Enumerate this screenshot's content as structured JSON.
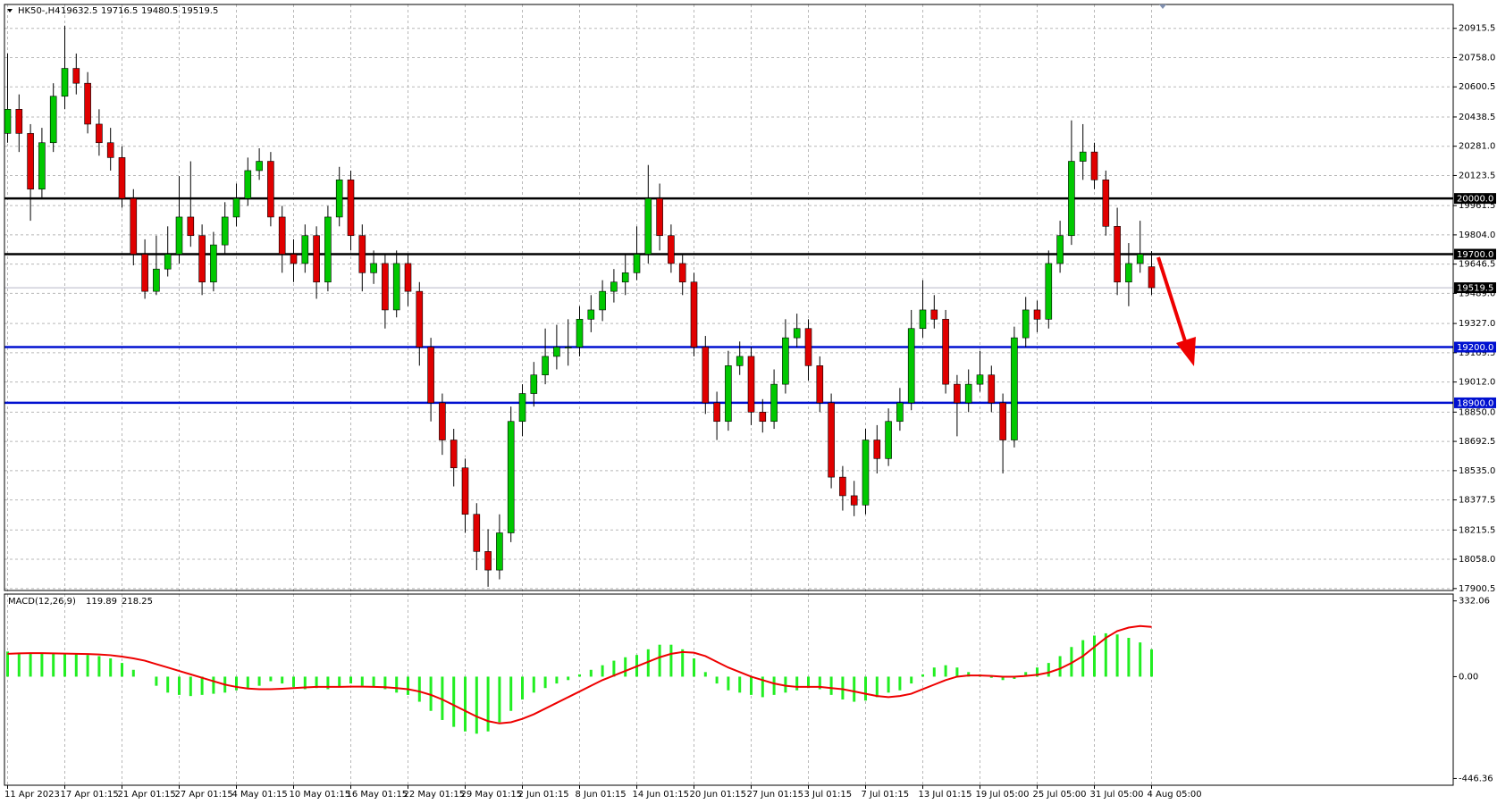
{
  "chart_data": [
    {
      "type": "candlestick",
      "symbol": "HK50-,H4",
      "categories": [
        "11 Apr 2023",
        null,
        null,
        null,
        null,
        "17 Apr 01:15",
        null,
        null,
        null,
        null,
        "21 Apr 01:15",
        null,
        null,
        null,
        null,
        "27 Apr 01:15",
        null,
        null,
        null,
        null,
        "4 May 01:15",
        null,
        null,
        null,
        null,
        "10 May 01:15",
        null,
        null,
        null,
        null,
        "16 May 01:15",
        null,
        null,
        null,
        null,
        "22 May 01:15",
        null,
        null,
        null,
        null,
        "29 May 01:15",
        null,
        null,
        null,
        null,
        "2 Jun 01:15",
        null,
        null,
        null,
        null,
        "8 Jun 01:15",
        null,
        null,
        null,
        null,
        "14 Jun 01:15",
        null,
        null,
        null,
        null,
        "20 Jun 01:15",
        null,
        null,
        null,
        null,
        "27 Jun 01:15",
        null,
        null,
        null,
        null,
        "3 Jul 01:15",
        null,
        null,
        null,
        null,
        "7 Jul 01:15",
        null,
        null,
        null,
        null,
        "13 Jul 01:15",
        null,
        null,
        null,
        null,
        "19 Jul 05:00",
        null,
        null,
        null,
        null,
        "25 Jul 05:00",
        null,
        null,
        null,
        null,
        "31 Jul 05:00",
        null,
        null,
        null,
        null,
        "4 Aug 05:00"
      ],
      "open": [
        20350,
        20480,
        20350,
        20050,
        20300,
        20550,
        20700,
        20620,
        20400,
        20300,
        20220,
        20000,
        19700,
        19500,
        19620,
        19700,
        19900,
        19800,
        19550,
        19750,
        19900,
        20000,
        20150,
        20200,
        19900,
        19700,
        19650,
        19800,
        19550,
        19900,
        20100,
        19800,
        19600,
        19650,
        19400,
        19650,
        19500,
        19200,
        18900,
        18700,
        18550,
        18300,
        18100,
        18000,
        18200,
        18800,
        18950,
        19050,
        19150,
        19200,
        19200,
        19350,
        19400,
        19500,
        19550,
        19600,
        19700,
        20000,
        19800,
        19650,
        19550,
        19200,
        18900,
        18800,
        19100,
        19150,
        18850,
        18800,
        19000,
        19250,
        19300,
        19100,
        18900,
        18500,
        18400,
        18350,
        18700,
        18600,
        18800,
        18900,
        19300,
        19400,
        19350,
        19000,
        18900,
        19000,
        19050,
        18900,
        18700,
        19250,
        19400,
        19350,
        19650,
        19800,
        20200,
        20250,
        20100,
        19850,
        19550,
        19650,
        19632.5
      ],
      "high": [
        20780,
        20560,
        20400,
        20380,
        20620,
        20930,
        20780,
        20680,
        20480,
        20380,
        20280,
        20050,
        19780,
        19800,
        19850,
        20120,
        20200,
        19860,
        19820,
        19980,
        20080,
        20220,
        20270,
        20250,
        19960,
        19780,
        19860,
        19850,
        19960,
        20170,
        20150,
        19860,
        19720,
        19700,
        19720,
        19700,
        19550,
        19250,
        18950,
        18760,
        18600,
        18360,
        18220,
        18300,
        18880,
        19000,
        19120,
        19300,
        19320,
        19350,
        19420,
        19480,
        19560,
        19620,
        19700,
        19850,
        20180,
        20080,
        19860,
        19700,
        19600,
        19260,
        18960,
        19180,
        19230,
        19200,
        18920,
        19080,
        19350,
        19380,
        19350,
        19150,
        18950,
        18560,
        18480,
        18760,
        18780,
        18870,
        18980,
        19400,
        19560,
        19480,
        19400,
        19050,
        19080,
        19180,
        19100,
        18950,
        19310,
        19470,
        19450,
        19720,
        19880,
        20420,
        20400,
        20300,
        20150,
        19950,
        19760,
        19880,
        19716.5
      ],
      "low": [
        20300,
        20250,
        19880,
        20000,
        20250,
        20480,
        20560,
        20350,
        20230,
        20150,
        19950,
        19640,
        19460,
        19480,
        19580,
        19650,
        19740,
        19480,
        19500,
        19700,
        19850,
        19960,
        20100,
        19850,
        19600,
        19550,
        19600,
        19460,
        19500,
        19850,
        19720,
        19500,
        19540,
        19300,
        19360,
        19420,
        19100,
        18800,
        18620,
        18450,
        18200,
        18000,
        17910,
        17950,
        18150,
        18720,
        18880,
        19000,
        19080,
        19100,
        19150,
        19280,
        19340,
        19440,
        19480,
        19560,
        19650,
        19720,
        19600,
        19480,
        19150,
        18840,
        18700,
        18750,
        19050,
        18780,
        18740,
        18760,
        18950,
        19200,
        19020,
        18850,
        18440,
        18320,
        18290,
        18300,
        18520,
        18560,
        18750,
        18860,
        19250,
        19300,
        18950,
        18720,
        18850,
        18960,
        18850,
        18520,
        18660,
        19200,
        19280,
        19300,
        19600,
        19750,
        20100,
        20050,
        19800,
        19480,
        19420,
        19600,
        19480.5
      ],
      "close": [
        20480,
        20350,
        20050,
        20300,
        20550,
        20700,
        20620,
        20400,
        20300,
        20220,
        20000,
        19700,
        19500,
        19620,
        19700,
        19900,
        19800,
        19550,
        19750,
        19900,
        20000,
        20150,
        20200,
        19900,
        19700,
        19650,
        19800,
        19550,
        19900,
        20100,
        19800,
        19600,
        19650,
        19400,
        19650,
        19500,
        19200,
        18900,
        18700,
        18550,
        18300,
        18100,
        18000,
        18200,
        18800,
        18950,
        19050,
        19150,
        19200,
        19200,
        19350,
        19400,
        19500,
        19550,
        19600,
        19700,
        20000,
        19800,
        19650,
        19550,
        19200,
        18900,
        18800,
        19100,
        19150,
        18850,
        18800,
        19000,
        19250,
        19300,
        19100,
        18900,
        18500,
        18400,
        18350,
        18700,
        18600,
        18800,
        18900,
        19300,
        19400,
        19350,
        19000,
        18900,
        19000,
        19050,
        18900,
        18700,
        19250,
        19400,
        19350,
        19650,
        19800,
        20200,
        20250,
        20100,
        19850,
        19550,
        19650,
        19700,
        19519.5
      ],
      "up_color": "#00c800",
      "down_color": "#e00000",
      "wick_color": "#000000",
      "ylim": [
        17890,
        21044
      ],
      "yticks": [
        20915.5,
        {
          "value": 20758,
          "label": "20758.0"
        },
        20600.5,
        20438.5,
        {
          "value": 20281,
          "label": "20281.0"
        },
        20123.5,
        19961.5,
        {
          "value": 19804,
          "label": "19804.0"
        },
        19646.5,
        {
          "value": 19489,
          "label": "19489.0"
        },
        {
          "value": 19327,
          "label": "19327.0"
        },
        19169.5,
        {
          "value": 19012,
          "label": "19012.0"
        },
        {
          "value": 18850,
          "label": "18850.0"
        },
        18692.5,
        {
          "value": 18535,
          "label": "18535.0"
        },
        18377.5,
        18215.5,
        {
          "value": 18058,
          "label": "18058.0"
        },
        17900.5
      ],
      "grid": true,
      "levels": [
        {
          "value": 20000,
          "label": "20000.0",
          "line_color": "#000000",
          "box_color": "#000000"
        },
        {
          "value": 19700,
          "label": "19700.0",
          "line_color": "#000000",
          "box_color": "#000000"
        },
        {
          "value": 19519.5,
          "label": "19519.5",
          "line_color": "#b8b8c8",
          "box_color": "#000000"
        },
        {
          "value": 19200,
          "label": "19200.0",
          "line_color": "#0010d0",
          "box_color": "#0010d0"
        },
        {
          "value": 18900,
          "label": "18900.0",
          "line_color": "#0010d0",
          "box_color": "#0010d0"
        }
      ]
    },
    {
      "type": "macd",
      "title": "MACD(12,26,9)",
      "values": [
        110,
        105,
        100,
        100,
        100,
        100,
        100,
        95,
        90,
        80,
        60,
        30,
        0,
        -40,
        -70,
        -80,
        -85,
        -80,
        -75,
        -70,
        -60,
        -50,
        -40,
        -20,
        -30,
        -45,
        -55,
        -50,
        -55,
        -45,
        -30,
        -40,
        -45,
        -55,
        -70,
        -80,
        -110,
        -150,
        -190,
        -220,
        -240,
        -250,
        -240,
        -200,
        -150,
        -100,
        -70,
        -50,
        -30,
        -15,
        10,
        30,
        50,
        70,
        85,
        95,
        120,
        140,
        140,
        120,
        80,
        20,
        -30,
        -60,
        -70,
        -80,
        -90,
        -80,
        -70,
        -60,
        -50,
        -55,
        -80,
        -100,
        -110,
        -105,
        -90,
        -70,
        -60,
        -30,
        10,
        40,
        50,
        40,
        20,
        10,
        -5,
        -15,
        -10,
        20,
        40,
        60,
        90,
        130,
        160,
        180,
        190,
        185,
        170,
        150,
        119.89
      ],
      "signal": [
        100,
        102,
        103,
        103,
        102,
        101,
        100,
        99,
        97,
        94,
        88,
        80,
        70,
        55,
        40,
        25,
        10,
        -5,
        -20,
        -35,
        -45,
        -52,
        -55,
        -55,
        -53,
        -50,
        -47,
        -45,
        -45,
        -45,
        -44,
        -44,
        -45,
        -46,
        -50,
        -55,
        -65,
        -80,
        -100,
        -125,
        -150,
        -175,
        -195,
        -205,
        -200,
        -185,
        -165,
        -140,
        -115,
        -90,
        -65,
        -40,
        -15,
        5,
        25,
        45,
        65,
        85,
        100,
        108,
        105,
        90,
        65,
        40,
        20,
        0,
        -15,
        -30,
        -40,
        -45,
        -45,
        -45,
        -50,
        -55,
        -65,
        -75,
        -85,
        -90,
        -85,
        -75,
        -55,
        -35,
        -15,
        0,
        5,
        5,
        3,
        0,
        0,
        3,
        8,
        18,
        35,
        60,
        90,
        130,
        170,
        200,
        215,
        222,
        218.25
      ],
      "color": "#22ee22",
      "signal_color": "#ee0000",
      "ylim": [
        -476,
        362
      ],
      "yticks": [
        332.06,
        {
          "value": 0,
          "label": "0.00"
        },
        -446.36
      ]
    }
  ]
}
